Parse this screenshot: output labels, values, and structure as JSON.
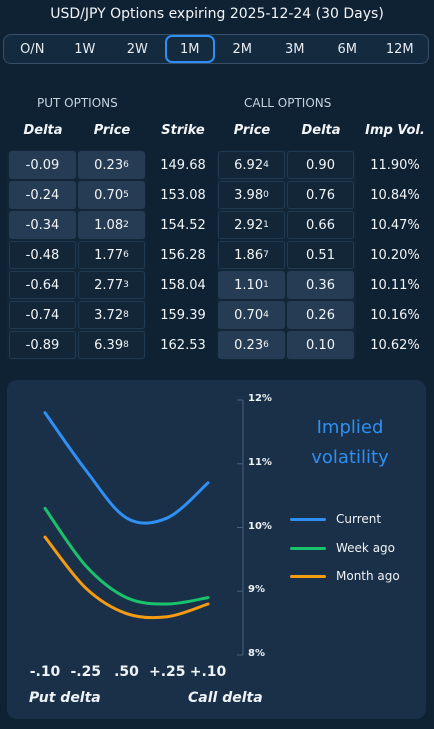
{
  "header": {
    "title": "USD/JPY Options expiring 2025-12-24 (30 Days)"
  },
  "tabs": [
    {
      "label": "O/N"
    },
    {
      "label": "1W"
    },
    {
      "label": "2W"
    },
    {
      "label": "1M",
      "active": true
    },
    {
      "label": "2M"
    },
    {
      "label": "3M"
    },
    {
      "label": "6M"
    },
    {
      "label": "12M"
    }
  ],
  "table": {
    "put_label": "PUT OPTIONS",
    "call_label": "CALL OPTIONS",
    "headers": {
      "delta": "Delta",
      "price": "Price",
      "strike": "Strike",
      "call_price": "Price",
      "call_delta": "Delta",
      "imp_vol": "Imp Vol."
    },
    "rows": [
      {
        "put_delta": "-0.09",
        "put_price_main": "0.23",
        "put_price_sub": "6",
        "strike": "149.68",
        "call_price_main": "6.92",
        "call_price_sub": "4",
        "call_delta": "0.90",
        "imp_vol": "11.90%"
      },
      {
        "put_delta": "-0.24",
        "put_price_main": "0.70",
        "put_price_sub": "5",
        "strike": "153.08",
        "call_price_main": "3.98",
        "call_price_sub": "0",
        "call_delta": "0.76",
        "imp_vol": "10.84%"
      },
      {
        "put_delta": "-0.34",
        "put_price_main": "1.08",
        "put_price_sub": "2",
        "strike": "154.52",
        "call_price_main": "2.92",
        "call_price_sub": "1",
        "call_delta": "0.66",
        "imp_vol": "10.47%"
      },
      {
        "put_delta": "-0.48",
        "put_price_main": "1.77",
        "put_price_sub": "6",
        "strike": "156.28",
        "call_price_main": "1.86",
        "call_price_sub": "7",
        "call_delta": "0.51",
        "imp_vol": "10.20%"
      },
      {
        "put_delta": "-0.64",
        "put_price_main": "2.77",
        "put_price_sub": "3",
        "strike": "158.04",
        "call_price_main": "1.10",
        "call_price_sub": "1",
        "call_delta": "0.36",
        "imp_vol": "10.11%"
      },
      {
        "put_delta": "-0.74",
        "put_price_main": "3.72",
        "put_price_sub": "8",
        "strike": "159.39",
        "call_price_main": "0.70",
        "call_price_sub": "4",
        "call_delta": "0.26",
        "imp_vol": "10.16%"
      },
      {
        "put_delta": "-0.89",
        "put_price_main": "6.39",
        "put_price_sub": "8",
        "strike": "162.53",
        "call_price_main": "0.23",
        "call_price_sub": "6",
        "call_delta": "0.10",
        "imp_vol": "10.62%"
      }
    ]
  },
  "chart": {
    "title_line1": "Implied",
    "title_line2": "volatility",
    "x_foot_left": "Put delta",
    "x_foot_right": "Call delta"
  },
  "chart_data": {
    "type": "line",
    "x": [
      "-.10",
      "-.25",
      ".50",
      "+.25",
      "+.10"
    ],
    "yticks": [
      "12%",
      "11%",
      "10%",
      "9%",
      "8%"
    ],
    "ylim": [
      8,
      12
    ],
    "series": [
      {
        "name": "Current",
        "color": "#2f8ff2",
        "values": [
          11.8,
          10.9,
          10.15,
          10.15,
          10.7
        ]
      },
      {
        "name": "Week ago",
        "color": "#19c36b",
        "values": [
          10.3,
          9.4,
          8.9,
          8.8,
          8.9
        ]
      },
      {
        "name": "Month ago",
        "color": "#f39c12",
        "values": [
          9.85,
          9.05,
          8.65,
          8.6,
          8.8
        ]
      }
    ]
  }
}
